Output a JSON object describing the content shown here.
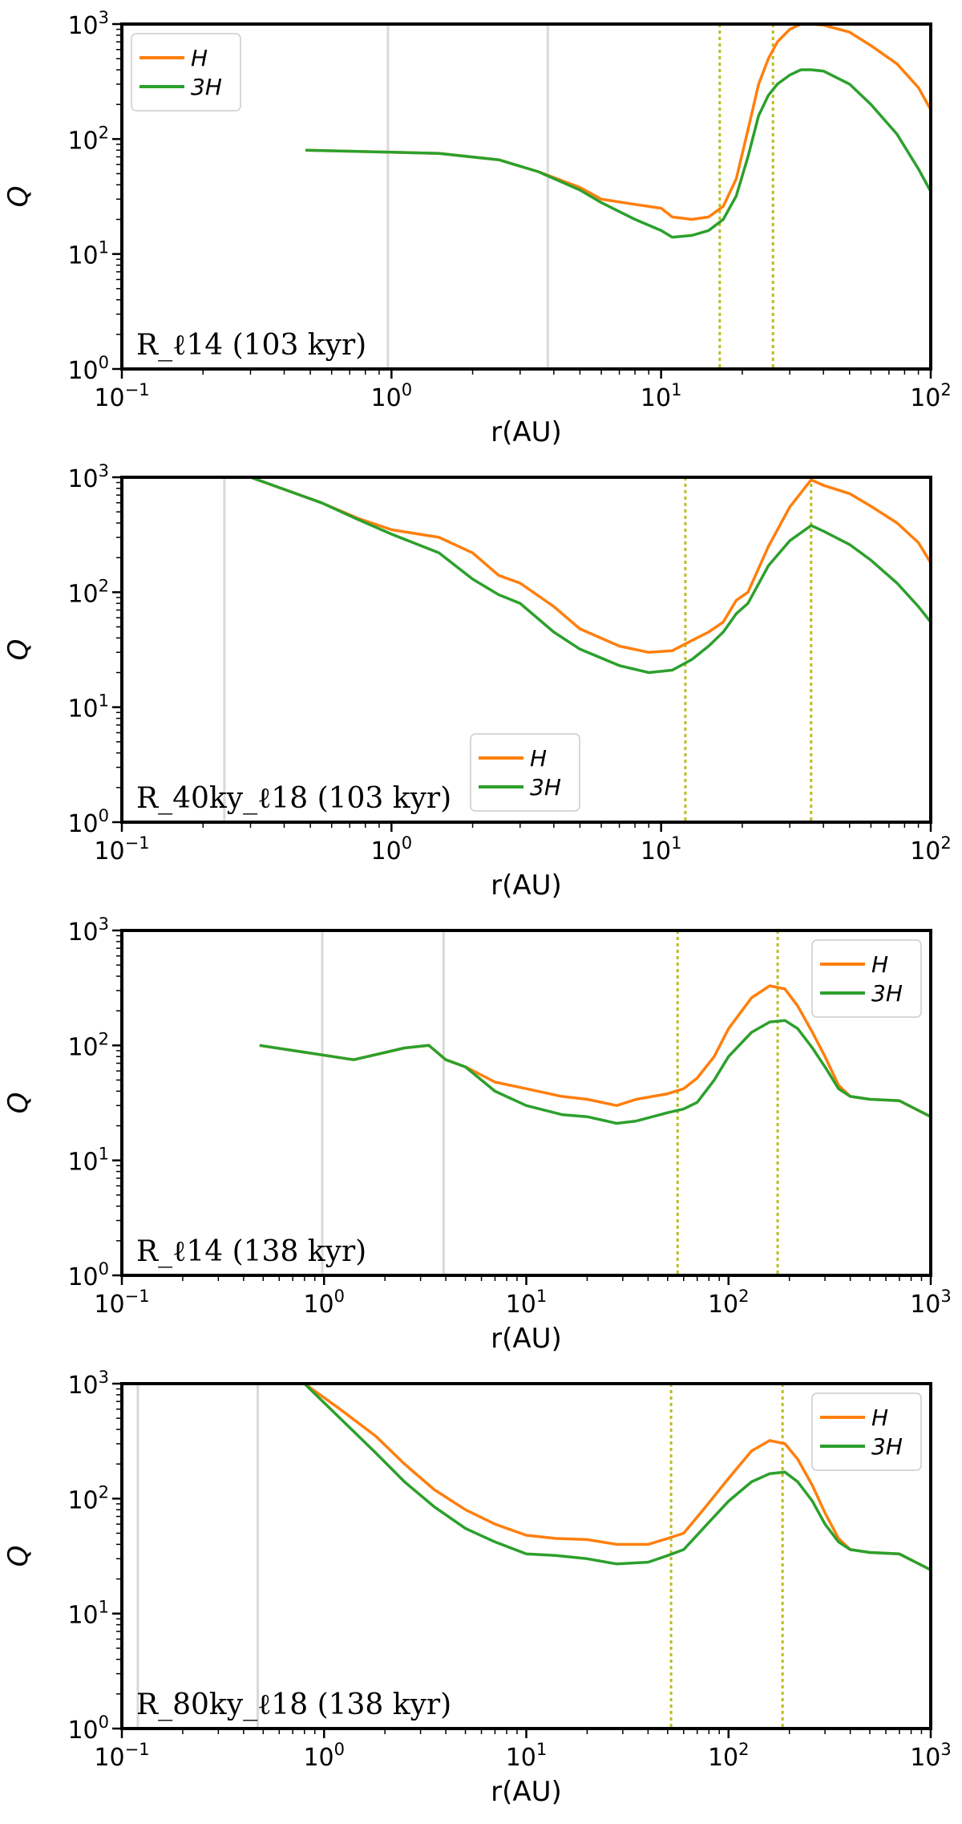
{
  "chart_data": [
    {
      "type": "line",
      "panel_label": "R_ℓ14 (103 kyr)",
      "xlabel": "r(AU)",
      "ylabel": "Q",
      "xscale": "log",
      "yscale": "log",
      "xlim": [
        0.1,
        100
      ],
      "ylim": [
        1,
        1000
      ],
      "x_ticks": [
        {
          "base": "10",
          "exp": "−1"
        },
        {
          "base": "10",
          "exp": "0"
        },
        {
          "base": "10",
          "exp": "1"
        },
        {
          "base": "10",
          "exp": "2"
        }
      ],
      "y_ticks": [
        {
          "base": "10",
          "exp": "0"
        },
        {
          "base": "10",
          "exp": "1"
        },
        {
          "base": "10",
          "exp": "2"
        },
        {
          "base": "10",
          "exp": "3"
        }
      ],
      "legend": {
        "position": "upper-left",
        "entries": [
          "H",
          "3H"
        ]
      },
      "gray_vlines": [
        0.97,
        3.8
      ],
      "dotted_vlines": [
        16.5,
        26.0
      ],
      "series": [
        {
          "name": "H",
          "color": "#ff7f0e",
          "x": [
            0.48,
            1.5,
            2.5,
            3.5,
            5,
            6,
            8,
            10,
            11,
            13,
            15,
            17,
            19,
            21,
            23,
            25,
            27,
            30,
            33,
            36,
            40,
            50,
            60,
            75,
            90,
            100
          ],
          "y": [
            80,
            75,
            66,
            52,
            38,
            30,
            27,
            25,
            21,
            20,
            21,
            26,
            45,
            120,
            300,
            500,
            700,
            900,
            1000,
            1000,
            980,
            850,
            650,
            450,
            280,
            180
          ]
        },
        {
          "name": "3H",
          "color": "#2ca02c",
          "x": [
            0.48,
            1.5,
            2.5,
            3.5,
            5,
            6,
            8,
            10,
            11,
            13,
            15,
            17,
            19,
            21,
            23,
            25,
            27,
            30,
            33,
            36,
            40,
            50,
            60,
            75,
            90,
            100
          ],
          "y": [
            80,
            75,
            66,
            52,
            36,
            28,
            20,
            16,
            14,
            14.5,
            16,
            20,
            32,
            70,
            160,
            240,
            300,
            360,
            400,
            400,
            390,
            300,
            200,
            110,
            55,
            35
          ]
        }
      ]
    },
    {
      "type": "line",
      "panel_label": "R_40ky_ℓ18 (103 kyr)",
      "xlabel": "r(AU)",
      "ylabel": "Q",
      "xscale": "log",
      "yscale": "log",
      "xlim": [
        0.1,
        100
      ],
      "ylim": [
        1,
        1000
      ],
      "x_ticks": [
        {
          "base": "10",
          "exp": "−1"
        },
        {
          "base": "10",
          "exp": "0"
        },
        {
          "base": "10",
          "exp": "1"
        },
        {
          "base": "10",
          "exp": "2"
        }
      ],
      "y_ticks": [
        {
          "base": "10",
          "exp": "0"
        },
        {
          "base": "10",
          "exp": "1"
        },
        {
          "base": "10",
          "exp": "2"
        },
        {
          "base": "10",
          "exp": "3"
        }
      ],
      "legend": {
        "position": "lower-center",
        "entries": [
          "H",
          "3H"
        ]
      },
      "gray_vlines": [
        0.24
      ],
      "dotted_vlines": [
        12.3,
        36.0
      ],
      "series": [
        {
          "name": "H",
          "color": "#ff7f0e",
          "x": [
            0.3,
            0.55,
            0.75,
            1.0,
            1.5,
            2.0,
            2.5,
            3.0,
            4.0,
            5.0,
            7.0,
            9.0,
            11,
            13,
            15,
            17,
            19,
            21,
            25,
            30,
            36,
            40,
            50,
            60,
            75,
            90,
            100
          ],
          "y": [
            1000,
            600,
            440,
            350,
            300,
            220,
            140,
            120,
            75,
            48,
            34,
            30,
            31,
            38,
            45,
            55,
            85,
            100,
            250,
            550,
            950,
            850,
            720,
            560,
            400,
            270,
            180
          ]
        },
        {
          "name": "3H",
          "color": "#2ca02c",
          "x": [
            0.3,
            0.55,
            0.75,
            1.0,
            1.5,
            2.0,
            2.5,
            3.0,
            4.0,
            5.0,
            7.0,
            9.0,
            11,
            13,
            15,
            17,
            19,
            21,
            25,
            30,
            36,
            40,
            50,
            60,
            75,
            90,
            100
          ],
          "y": [
            1000,
            600,
            430,
            320,
            220,
            130,
            95,
            80,
            45,
            32,
            23,
            20,
            21,
            26,
            34,
            45,
            65,
            80,
            170,
            280,
            380,
            340,
            260,
            190,
            120,
            75,
            55
          ]
        }
      ]
    },
    {
      "type": "line",
      "panel_label": "R_ℓ14 (138 kyr)",
      "xlabel": "r(AU)",
      "ylabel": "Q",
      "xscale": "log",
      "yscale": "log",
      "xlim": [
        0.1,
        1000
      ],
      "ylim": [
        1,
        1000
      ],
      "x_ticks": [
        {
          "base": "10",
          "exp": "−1"
        },
        {
          "base": "10",
          "exp": "0"
        },
        {
          "base": "10",
          "exp": "1"
        },
        {
          "base": "10",
          "exp": "2"
        },
        {
          "base": "10",
          "exp": "3"
        }
      ],
      "y_ticks": [
        {
          "base": "10",
          "exp": "0"
        },
        {
          "base": "10",
          "exp": "1"
        },
        {
          "base": "10",
          "exp": "2"
        },
        {
          "base": "10",
          "exp": "3"
        }
      ],
      "legend": {
        "position": "upper-right",
        "entries": [
          "H",
          "3H"
        ]
      },
      "gray_vlines": [
        0.98,
        3.9
      ],
      "dotted_vlines": [
        56,
        175
      ],
      "series": [
        {
          "name": "H",
          "color": "#ff7f0e",
          "x": [
            0.48,
            1.4,
            2.5,
            3.3,
            4.0,
            5.0,
            7.0,
            10,
            15,
            20,
            28,
            35,
            50,
            60,
            70,
            85,
            100,
            130,
            160,
            190,
            220,
            260,
            300,
            350,
            400,
            500,
            700,
            1000
          ],
          "y": [
            100,
            75,
            95,
            100,
            75,
            65,
            48,
            42,
            36,
            34,
            30,
            34,
            38,
            42,
            52,
            80,
            140,
            260,
            330,
            310,
            220,
            130,
            80,
            45,
            36,
            34,
            33,
            24
          ]
        },
        {
          "name": "3H",
          "color": "#2ca02c",
          "x": [
            0.48,
            1.4,
            2.5,
            3.3,
            4.0,
            5.0,
            7.0,
            10,
            15,
            20,
            28,
            35,
            50,
            60,
            70,
            85,
            100,
            130,
            160,
            190,
            220,
            260,
            300,
            350,
            400,
            500,
            700,
            1000
          ],
          "y": [
            100,
            75,
            95,
            100,
            75,
            65,
            40,
            30,
            25,
            24,
            21,
            22,
            26,
            28,
            32,
            50,
            80,
            130,
            160,
            165,
            140,
            95,
            65,
            42,
            36,
            34,
            33,
            24
          ]
        }
      ]
    },
    {
      "type": "line",
      "panel_label": "R_80ky_ℓ18 (138 kyr)",
      "xlabel": "r(AU)",
      "ylabel": "Q",
      "xscale": "log",
      "yscale": "log",
      "xlim": [
        0.1,
        1000
      ],
      "ylim": [
        1,
        1000
      ],
      "x_ticks": [
        {
          "base": "10",
          "exp": "−1"
        },
        {
          "base": "10",
          "exp": "0"
        },
        {
          "base": "10",
          "exp": "1"
        },
        {
          "base": "10",
          "exp": "2"
        },
        {
          "base": "10",
          "exp": "3"
        }
      ],
      "y_ticks": [
        {
          "base": "10",
          "exp": "0"
        },
        {
          "base": "10",
          "exp": "1"
        },
        {
          "base": "10",
          "exp": "2"
        },
        {
          "base": "10",
          "exp": "3"
        }
      ],
      "legend": {
        "position": "upper-right",
        "entries": [
          "H",
          "3H"
        ]
      },
      "gray_vlines": [
        0.12,
        0.47
      ],
      "dotted_vlines": [
        52,
        185
      ],
      "series": [
        {
          "name": "H",
          "color": "#ff7f0e",
          "x": [
            0.8,
            1.2,
            1.8,
            2.5,
            3.5,
            5.0,
            7.0,
            10,
            14,
            20,
            28,
            40,
            50,
            60,
            75,
            100,
            130,
            160,
            190,
            220,
            260,
            300,
            350,
            400,
            500,
            700,
            1000
          ],
          "y": [
            1000,
            600,
            350,
            200,
            120,
            80,
            60,
            48,
            45,
            44,
            40,
            40,
            45,
            50,
            80,
            150,
            260,
            320,
            300,
            220,
            130,
            75,
            45,
            36,
            34,
            33,
            24
          ]
        },
        {
          "name": "3H",
          "color": "#2ca02c",
          "x": [
            0.8,
            1.2,
            1.8,
            2.5,
            3.5,
            5.0,
            7.0,
            10,
            14,
            20,
            28,
            40,
            50,
            60,
            75,
            100,
            130,
            160,
            190,
            220,
            260,
            300,
            350,
            400,
            500,
            700,
            1000
          ],
          "y": [
            1000,
            500,
            250,
            140,
            85,
            55,
            42,
            33,
            32,
            30,
            27,
            28,
            32,
            36,
            55,
            95,
            140,
            165,
            170,
            140,
            95,
            60,
            42,
            36,
            34,
            33,
            24
          ]
        }
      ]
    }
  ]
}
